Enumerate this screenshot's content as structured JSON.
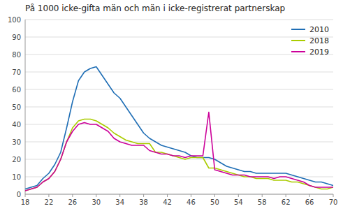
{
  "chart_data": {
    "type": "line",
    "title": "På 1000 icke-gifta män och män i icke-registrerat partnerskap",
    "x": [
      18,
      19,
      20,
      21,
      22,
      23,
      24,
      25,
      26,
      27,
      28,
      29,
      30,
      31,
      32,
      33,
      34,
      35,
      36,
      37,
      38,
      39,
      40,
      41,
      42,
      43,
      44,
      45,
      46,
      47,
      48,
      49,
      50,
      51,
      52,
      53,
      54,
      55,
      56,
      57,
      58,
      59,
      60,
      61,
      62,
      63,
      64,
      65,
      66,
      67,
      68,
      69,
      70
    ],
    "series": [
      {
        "name": "2010",
        "color": "#1f6eb5",
        "values": [
          3,
          4,
          5,
          9,
          12,
          17,
          24,
          38,
          53,
          65,
          70,
          72,
          73,
          68,
          63,
          58,
          55,
          50,
          45,
          40,
          35,
          32,
          30,
          28,
          27,
          26,
          25,
          24,
          22,
          21,
          21,
          21,
          20,
          18,
          16,
          15,
          14,
          13,
          13,
          12,
          12,
          12,
          12,
          12,
          12,
          11,
          10,
          9,
          8,
          7,
          7,
          6,
          5
        ]
      },
      {
        "name": "2018",
        "color": "#aacc00",
        "values": [
          2,
          3,
          4,
          7,
          9,
          13,
          20,
          30,
          38,
          42,
          43,
          43,
          42,
          40,
          38,
          35,
          33,
          31,
          30,
          29,
          29,
          29,
          24,
          24,
          23,
          22,
          21,
          20,
          21,
          21,
          21,
          15,
          15,
          14,
          13,
          12,
          11,
          10,
          10,
          9,
          9,
          9,
          8,
          8,
          8,
          7,
          7,
          6,
          5,
          4,
          3,
          3,
          4
        ]
      },
      {
        "name": "2019",
        "color": "#cc0099",
        "values": [
          2,
          3,
          4,
          7,
          9,
          13,
          20,
          30,
          36,
          40,
          41,
          40,
          40,
          38,
          36,
          32,
          30,
          29,
          28,
          28,
          28,
          25,
          24,
          23,
          23,
          22,
          22,
          21,
          22,
          22,
          22,
          47,
          14,
          13,
          12,
          11,
          11,
          11,
          10,
          10,
          10,
          10,
          9,
          10,
          10,
          9,
          8,
          7,
          5,
          4,
          4,
          4,
          4
        ]
      }
    ],
    "xlim": [
      18,
      70
    ],
    "ylim": [
      0,
      100
    ],
    "xticks": [
      18,
      22,
      26,
      30,
      34,
      38,
      42,
      46,
      50,
      54,
      58,
      62,
      66,
      70
    ],
    "yticks": [
      0,
      10,
      20,
      30,
      40,
      50,
      60,
      70,
      80,
      90,
      100
    ],
    "grid": true,
    "legend": "upper right"
  }
}
